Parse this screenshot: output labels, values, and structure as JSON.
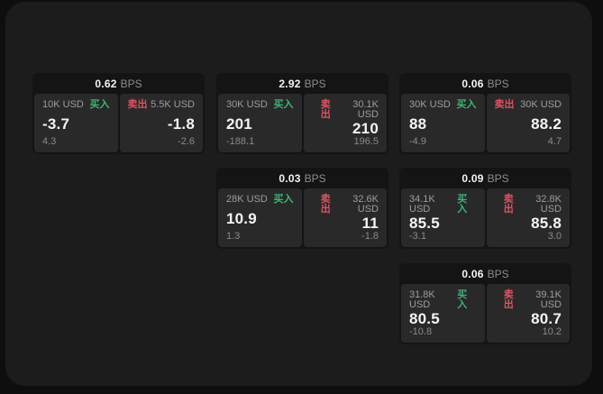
{
  "colors": {
    "buy_green": "#3db374",
    "sell_red": "#dd5361",
    "panel_bg": "#1c1c1c",
    "card_bg": "#141414",
    "pane_bg": "#292929"
  },
  "labels": {
    "buy": "买入",
    "sell": "卖出",
    "bps_unit": "BPS"
  },
  "cards": [
    {
      "bps": "0.62",
      "buy": {
        "amount": "10K USD",
        "value": "-3.7",
        "sub": "4.3"
      },
      "sell": {
        "amount": "5.5K USD",
        "value": "-1.8",
        "sub": "-2.6"
      }
    },
    {
      "bps": "2.92",
      "buy": {
        "amount": "30K USD",
        "value": "201",
        "sub": "-188.1"
      },
      "sell": {
        "amount": "30.1K USD",
        "value": "210",
        "sub": "196.5"
      }
    },
    {
      "bps": "0.06",
      "buy": {
        "amount": "30K USD",
        "value": "88",
        "sub": "-4.9"
      },
      "sell": {
        "amount": "30K USD",
        "value": "88.2",
        "sub": "4.7"
      }
    },
    {
      "bps": "0.03",
      "buy": {
        "amount": "28K USD",
        "value": "10.9",
        "sub": "1.3"
      },
      "sell": {
        "amount": "32.6K USD",
        "value": "11",
        "sub": "-1.8"
      }
    },
    {
      "bps": "0.09",
      "buy": {
        "amount": "34.1K USD",
        "value": "85.5",
        "sub": "-3.1"
      },
      "sell": {
        "amount": "32.8K USD",
        "value": "85.8",
        "sub": "3.0"
      }
    },
    {
      "bps": "0.06",
      "buy": {
        "amount": "31.8K USD",
        "value": "80.5",
        "sub": "-10.8"
      },
      "sell": {
        "amount": "39.1K USD",
        "value": "80.7",
        "sub": "10.2"
      }
    }
  ]
}
